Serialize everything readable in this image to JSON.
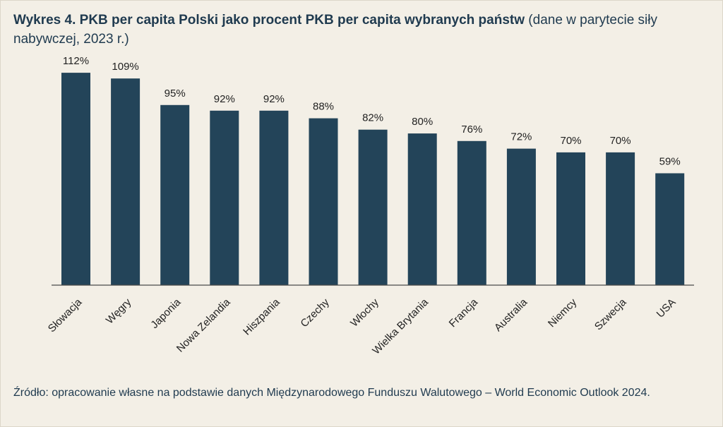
{
  "title": {
    "main": "Wykres 4. PKB per capita Polski jako procent PKB per capita wybranych państw",
    "note": "(dane w parytecie siły nabywczej, 2023 r.)"
  },
  "source": "Źródło: opracowanie własne na podstawie danych Międzynarodowego Funduszu Walutowego – World Economic Outlook 2024.",
  "colors": {
    "bar": "#234459",
    "background": "#f3efe6",
    "axis": "#4a4a4a",
    "text": "#1f3a4f"
  },
  "chart_data": {
    "type": "bar",
    "title": "Wykres 4. PKB per capita Polski jako procent PKB per capita wybranych państw",
    "subtitle": "(dane w parytecie siły nabywczej, 2023 r.)",
    "xlabel": "",
    "ylabel": "",
    "unit": "%",
    "ylim": [
      0,
      118
    ],
    "grid": false,
    "categories": [
      "Słowacja",
      "Węgry",
      "Japonia",
      "Nowa Zelandia",
      "Hiszpania",
      "Czechy",
      "Włochy",
      "Wielka Brytania",
      "Francja",
      "Australia",
      "Niemcy",
      "Szwecja",
      "USA"
    ],
    "values": [
      112,
      109,
      95,
      92,
      92,
      88,
      82,
      80,
      76,
      72,
      70,
      70,
      59
    ],
    "data_labels": [
      "112%",
      "109%",
      "95%",
      "92%",
      "92%",
      "88%",
      "82%",
      "80%",
      "76%",
      "72%",
      "70%",
      "70%",
      "59%"
    ]
  }
}
